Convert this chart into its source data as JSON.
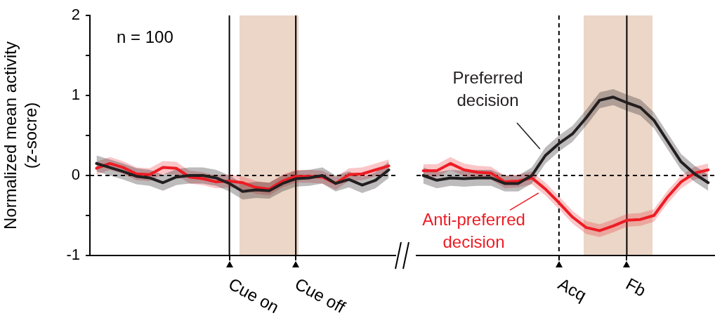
{
  "chart_data": [
    {
      "type": "line",
      "ylabel": "Normalized mean activity\n(z-socre)",
      "ylim": [
        -1,
        2
      ],
      "yticks": [
        -1,
        {
          "value": -0.5,
          "label": null
        },
        0,
        {
          "value": 0.5,
          "label": null
        },
        1,
        {
          "value": 1.5,
          "label": null
        },
        2
      ],
      "categories": [
        null,
        null,
        null,
        null,
        null,
        null,
        null,
        null,
        null,
        null,
        "Cue on",
        null,
        null,
        null,
        null,
        "Cue off",
        null,
        null,
        null,
        null,
        null,
        null,
        null
      ],
      "series": [
        {
          "color": "#231f20",
          "values": [
            0.15,
            0.1,
            0.05,
            -0.01,
            -0.03,
            -0.09,
            -0.02,
            0,
            0,
            -0.03,
            -0.1,
            -0.2,
            -0.18,
            -0.19,
            -0.1,
            -0.04,
            -0.03,
            0,
            -0.1,
            -0.05,
            -0.12,
            -0.06,
            0.07
          ],
          "lower": [
            0.05,
            0,
            -0.05,
            -0.11,
            -0.13,
            -0.19,
            -0.12,
            -0.1,
            -0.1,
            -0.13,
            -0.2,
            -0.3,
            -0.28,
            -0.29,
            -0.2,
            -0.14,
            -0.13,
            -0.1,
            -0.2,
            -0.15,
            -0.22,
            -0.16,
            -0.03
          ],
          "upper": [
            0.25,
            0.2,
            0.15,
            0.09,
            0.07,
            0.01,
            0.08,
            0.1,
            0.1,
            0.07,
            0,
            -0.1,
            -0.08,
            -0.09,
            0,
            0.06,
            0.07,
            0.1,
            0,
            0.05,
            -0.02,
            0.04,
            0.17
          ]
        },
        {
          "color": "#ed1c24",
          "values": [
            0.09,
            0.15,
            0.1,
            0.02,
            0.01,
            0.1,
            0.09,
            -0.02,
            -0.04,
            -0.08,
            -0.07,
            -0.09,
            -0.15,
            -0.17,
            -0.07,
            -0.01,
            -0.01,
            -0.02,
            -0.1,
            0.01,
            0.02,
            0.07,
            0.12
          ],
          "lower": [
            0.01,
            0.07,
            0.02,
            -0.06,
            -0.07,
            0.02,
            0.01,
            -0.1,
            -0.12,
            -0.16,
            -0.15,
            -0.17,
            -0.23,
            -0.25,
            -0.15,
            -0.09,
            -0.09,
            -0.1,
            -0.18,
            -0.07,
            -0.06,
            -0.01,
            0.04
          ],
          "upper": [
            0.17,
            0.23,
            0.18,
            0.1,
            0.09,
            0.18,
            0.17,
            0.06,
            0.04,
            0,
            0.01,
            -0.01,
            -0.07,
            -0.09,
            0.01,
            0.07,
            0.07,
            0.06,
            -0.02,
            0.09,
            0.1,
            0.15,
            0.2
          ]
        }
      ],
      "ref_lines": [
        {
          "axis": "x",
          "value": "Cue on",
          "line_style": "solid"
        },
        {
          "axis": "x",
          "value": "Cue off",
          "line_style": "solid"
        },
        {
          "axis": "y",
          "value": 0,
          "line_style": "dashed"
        }
      ],
      "annotations": [
        "n = 100"
      ],
      "legend": false,
      "grid": false,
      "marker": "none"
    },
    {
      "type": "line",
      "tick_labels": "x",
      "ylim": [
        -1,
        2
      ],
      "categories": [
        null,
        null,
        null,
        null,
        null,
        null,
        null,
        null,
        null,
        null,
        "Acq",
        null,
        null,
        null,
        null,
        "Fb",
        null,
        null,
        null,
        null,
        null,
        null
      ],
      "series": [
        {
          "name": "Preferred decision",
          "color": "#231f20",
          "values": [
            0,
            -0.06,
            -0.03,
            -0.04,
            -0.03,
            -0.03,
            -0.1,
            -0.1,
            0,
            0.25,
            0.4,
            0.52,
            0.72,
            0.94,
            0.98,
            0.91,
            0.85,
            0.69,
            0.43,
            0.17,
            0.02,
            -0.09
          ],
          "lower": [
            -0.1,
            -0.16,
            -0.13,
            -0.14,
            -0.13,
            -0.13,
            -0.2,
            -0.2,
            -0.1,
            0.15,
            0.3,
            0.42,
            0.62,
            0.84,
            0.88,
            0.81,
            0.75,
            0.59,
            0.33,
            0.07,
            -0.08,
            -0.19
          ],
          "upper": [
            0.1,
            0.04,
            0.07,
            0.06,
            0.07,
            0.07,
            0,
            0,
            0.1,
            0.35,
            0.5,
            0.62,
            0.82,
            1.04,
            1.08,
            1.01,
            0.95,
            0.79,
            0.53,
            0.27,
            0.12,
            0.01
          ]
        },
        {
          "name": "Anti-preferred decision",
          "color": "#ed1c24",
          "values": [
            0.06,
            0.06,
            0.15,
            0.07,
            0.04,
            0.03,
            -0.08,
            -0.07,
            -0.03,
            -0.17,
            -0.34,
            -0.52,
            -0.65,
            -0.69,
            -0.63,
            -0.56,
            -0.55,
            -0.5,
            -0.27,
            -0.08,
            0.03,
            0.07
          ],
          "lower": [
            -0.02,
            -0.02,
            0.07,
            -0.01,
            -0.04,
            -0.05,
            -0.16,
            -0.15,
            -0.11,
            -0.25,
            -0.42,
            -0.6,
            -0.73,
            -0.77,
            -0.71,
            -0.64,
            -0.63,
            -0.58,
            -0.35,
            -0.16,
            -0.05,
            -0.01
          ],
          "upper": [
            0.14,
            0.14,
            0.23,
            0.15,
            0.12,
            0.11,
            0,
            0.01,
            0.05,
            -0.09,
            -0.26,
            -0.44,
            -0.57,
            -0.61,
            -0.55,
            -0.48,
            -0.47,
            -0.42,
            -0.19,
            0,
            0.11,
            0.15
          ]
        }
      ],
      "ref_lines": [
        {
          "axis": "x",
          "value": "Acq",
          "line_style": "dashed"
        },
        {
          "axis": "x",
          "value": "Fb",
          "line_style": "solid"
        },
        {
          "axis": "y",
          "value": 0,
          "line_style": "dashed"
        }
      ],
      "grid": false,
      "marker": "none"
    }
  ]
}
